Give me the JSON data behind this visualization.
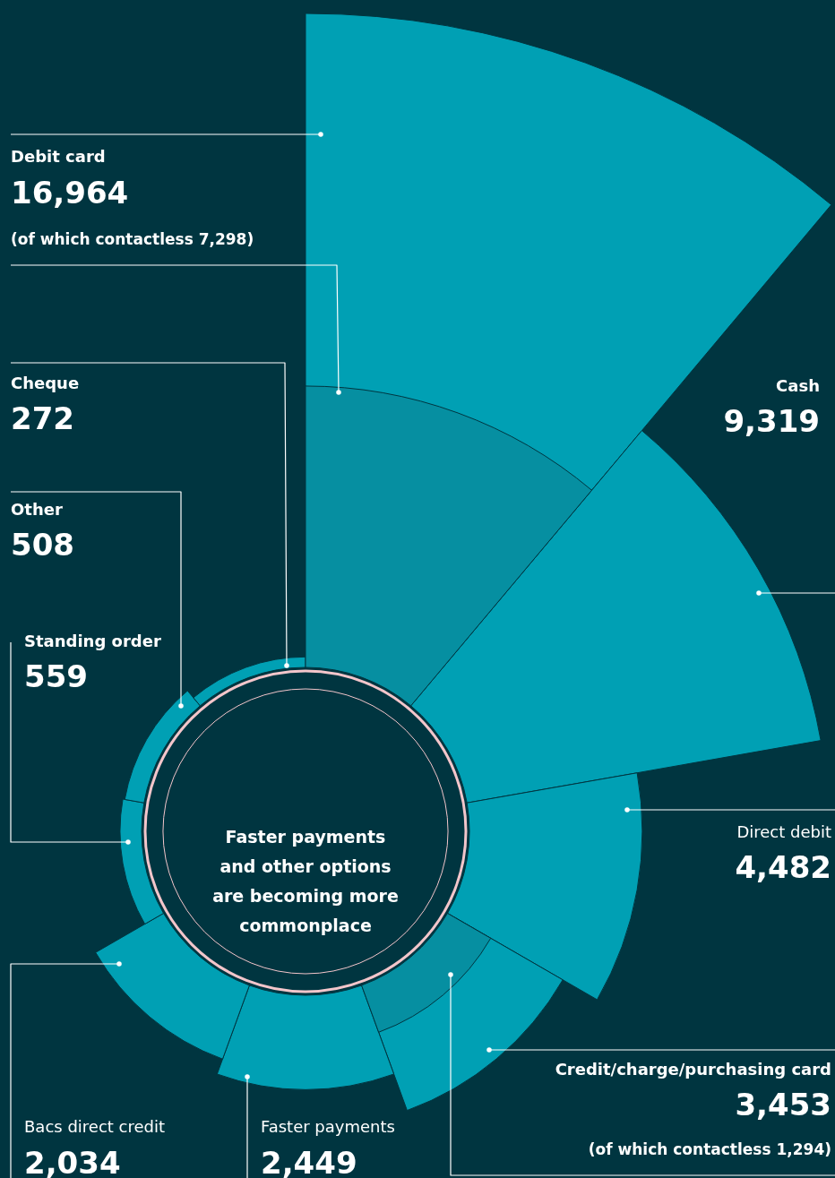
{
  "chart_data": {
    "type": "other",
    "title": "Faster payments\nand other options\nare becoming more\ncommonplace",
    "categories": [
      "Debit card",
      "Cash",
      "Direct debit",
      "Credit/charge/purchasing card",
      "Faster payments",
      "Bacs direct credit",
      "Standing order",
      "Other",
      "Cheque"
    ],
    "series": [
      {
        "color": "#00a0b4",
        "values": [
          16964,
          9319,
          4482,
          3453,
          2449,
          2034,
          559,
          508,
          272
        ],
        "value_labels": [
          "16,964",
          "9,319",
          "4,482",
          "3,453",
          "2,449",
          "2,034",
          "559",
          "508",
          "272"
        ]
      },
      {
        "color": "#068fa1",
        "values": [
          7298,
          null,
          null,
          1294,
          null,
          null,
          null,
          null,
          null
        ],
        "value_labels": [
          "(of which contactless 7,298)",
          null,
          null,
          "(of which contactless 1,294)",
          null,
          null,
          null,
          null,
          null
        ]
      }
    ]
  }
}
